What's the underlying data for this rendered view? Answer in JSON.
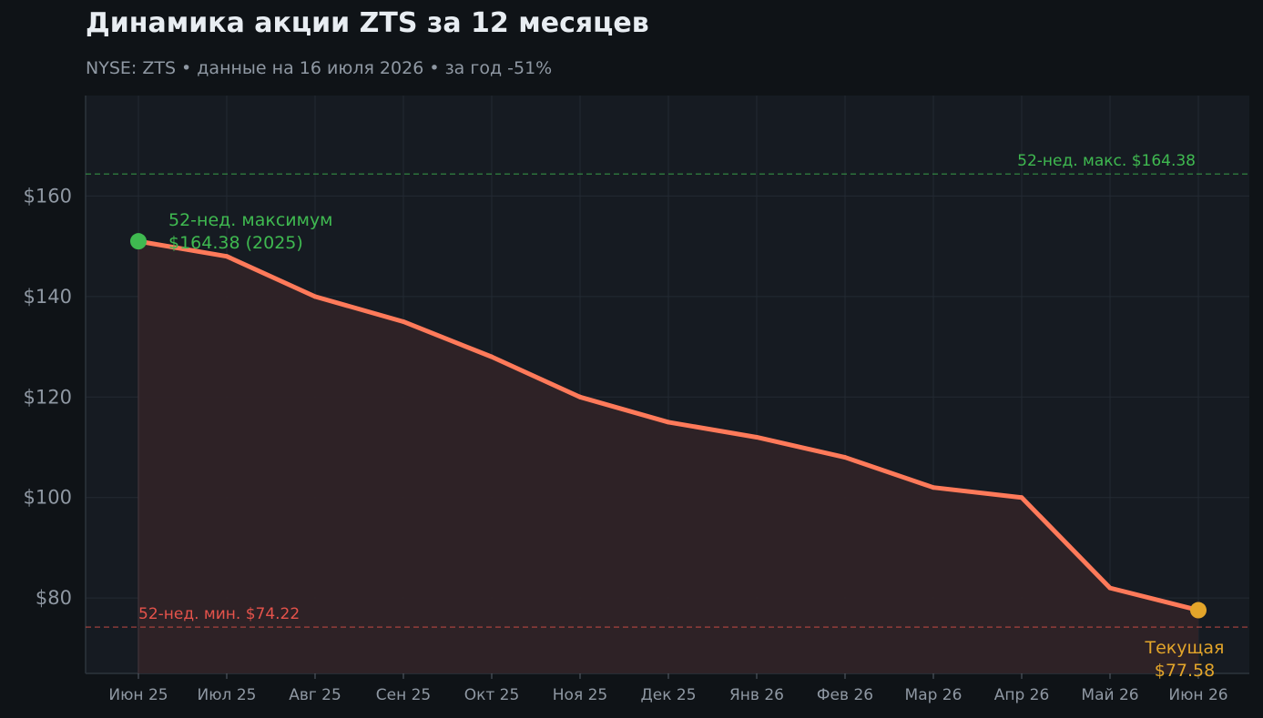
{
  "title": "Динамика акции ZTS за 12 месяцев",
  "subtitle": "NYSE: ZTS  •  данные на 16 июля 2026  •  за год -51%",
  "colors": {
    "line": "#ff7a5a",
    "fill": "#2f2327",
    "high": "#3fb950",
    "low": "#e5534b",
    "current": "#e3a52a",
    "grid": "#232a33",
    "plot_bg": "#161b22",
    "tick_text": "#8f98a3"
  },
  "chart_data": {
    "type": "area",
    "categories": [
      "Июн 25",
      "Июл 25",
      "Авг 25",
      "Сен 25",
      "Окт 25",
      "Ноя 25",
      "Дек 25",
      "Янв 26",
      "Фев 26",
      "Мар 26",
      "Апр 26",
      "Май 26",
      "Июн 26"
    ],
    "series": [
      {
        "values": [
          151,
          148,
          140,
          135,
          128,
          120,
          115,
          112,
          108,
          102,
          100,
          82,
          77.58
        ]
      }
    ],
    "ylim": [
      65,
      180
    ],
    "yticks": [
      80,
      100,
      120,
      140,
      160
    ],
    "ytick_labels": [
      "$80",
      "$100",
      "$120",
      "$140",
      "$160"
    ],
    "grid": true,
    "reference_lines": {
      "high": {
        "value": 164.38,
        "label": "52-нед. макс. $164.38"
      },
      "low": {
        "value": 74.22,
        "label": "52-нед. мин. $74.22"
      }
    },
    "annotations": {
      "start": {
        "index": 0,
        "line1": "52-нед. максимум",
        "line2": "$164.38 (2025)"
      },
      "end": {
        "index": 12,
        "line1": "Текущая",
        "line2": "$77.58"
      }
    }
  }
}
